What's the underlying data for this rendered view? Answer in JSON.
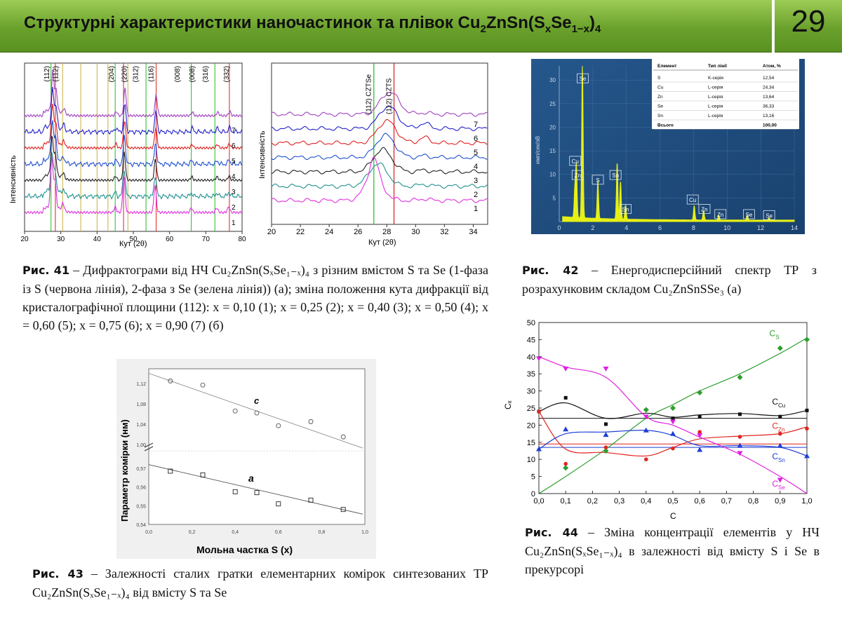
{
  "header": {
    "title_prefix": "Структурні характеристики наночастинок та плівок Cu",
    "slide_number": "29"
  },
  "fig41": {
    "caption_label": "Рис. 41",
    "caption_text": "– Дифрактограми від НЧ Cu₂ZnSn(SₓSe₁₋ₓ)₄ з різним вмістом S та Se (1-фаза із S (червона лінія), 2-фаза з Se (зелена лінія)) (а); зміна положення кута дифракції від кристалографічної площини (112): x = 0,10 (1); x = 0,25 (2); x = 0,40 (3); x = 0,50 (4); x = 0,60 (5); x = 0,75 (6); x = 0,90 (7) (б)",
    "left_ylabel": "Інтенсивність",
    "left_xlabel": "Кут (2θ)",
    "left_xticks": [
      "20",
      "30",
      "40",
      "50",
      "60",
      "70",
      "80"
    ],
    "left_peaks": [
      "(112)",
      "(112)",
      "(204)",
      "(220)",
      "(312)",
      "(116)",
      "(008)",
      "(008)",
      "(316)",
      "(332)"
    ],
    "left_curve_labels": [
      "7",
      "6",
      "5",
      "4",
      "3",
      "2",
      "1"
    ],
    "right_ylabel": "Інтенсивність",
    "right_xlabel": "Кут (2θ)",
    "right_xticks": [
      "20",
      "22",
      "24",
      "26",
      "28",
      "30",
      "32",
      "34"
    ],
    "right_peaks": [
      "(112) CZTSe",
      "(112) CZTS"
    ],
    "right_curve_labels": [
      "7",
      "6",
      "5",
      "4",
      "3",
      "2",
      "1"
    ]
  },
  "fig42": {
    "caption_label": "Рис. 42",
    "caption_text": "– Енергодисперсійний спектр ТР з розрахунковим складом Cu₂ZnSnSSe₃ (а)",
    "ylabel": "имп/сек/эВ",
    "xticks": [
      "0",
      "2",
      "4",
      "6",
      "8",
      "10",
      "12",
      "14"
    ],
    "yticks": [
      "5",
      "10",
      "15",
      "20",
      "25",
      "30"
    ],
    "peak_labels": [
      "Se",
      "Cu",
      "Zn",
      "S",
      "Sn",
      "Sn",
      "Cu",
      "Zn",
      "Zn",
      "Se",
      "Se"
    ],
    "table": {
      "headers": [
        "Елемент",
        "Тип лінії",
        "Атом, %"
      ],
      "rows": [
        [
          "S",
          "K-серія",
          "12,54"
        ],
        [
          "Cu",
          "L-серія",
          "24,34"
        ],
        [
          "Zn",
          "L-серія",
          "13,64"
        ],
        [
          "Se",
          "L-серія",
          "36,33"
        ],
        [
          "Sn",
          "L-серія",
          "13,16"
        ],
        [
          "Всього",
          "",
          "100,00"
        ]
      ]
    }
  },
  "fig43": {
    "caption_label": "Рис. 43",
    "caption_text": "– Залежності сталих гратки елементарних комірок синтезованих ТР Cu₂ZnSn(SₓSe₁₋ₓ)₄ від вмісту S та Se",
    "ylabel": "Параметр комірки (нм)",
    "xlabel": "Мольна частка S (x)",
    "label_c": "c",
    "label_a": "a",
    "xticks": [
      "0,0",
      "0,2",
      "0,4",
      "0,6",
      "0,8",
      "1,0"
    ],
    "yticks_top": [
      "1,12",
      "1,08",
      "1,04",
      "1,00"
    ],
    "yticks_bottom": [
      "0,57",
      "0,56",
      "0,55",
      "0,54"
    ]
  },
  "fig44": {
    "caption_label": "Рис. 44",
    "caption_text": "– Зміна концентрації елементів у НЧ Cu₂ZnSn(SₓSe₁₋ₓ)₄ в залежності від вмісту S і Se в прекурсорі",
    "ylabel": "Cₓ",
    "xlabel": "C",
    "series_labels": [
      "CS",
      "CCu",
      "CZn",
      "CSn",
      "CSe"
    ]
  },
  "chart_data": [
    {
      "type": "scatter",
      "title": "",
      "xlabel": "Мольна частка S (x)",
      "ylabel": "Параметр комірки (нм)",
      "xlim": [
        0.0,
        1.0
      ],
      "series": [
        {
          "name": "c",
          "x": [
            0.1,
            0.25,
            0.4,
            0.5,
            0.6,
            0.75,
            0.9
          ],
          "y": [
            1.125,
            1.117,
            1.066,
            1.062,
            1.037,
            1.045,
            1.015
          ]
        },
        {
          "name": "a",
          "x": [
            0.1,
            0.25,
            0.4,
            0.5,
            0.6,
            0.75,
            0.9
          ],
          "y": [
            0.5685,
            0.5665,
            0.5575,
            0.557,
            0.551,
            0.553,
            0.548
          ]
        }
      ]
    },
    {
      "type": "line",
      "title": "",
      "xlabel": "C",
      "ylabel": "Cₓ",
      "xlim": [
        0.0,
        1.0
      ],
      "ylim": [
        0,
        50
      ],
      "x": [
        0.0,
        0.1,
        0.25,
        0.4,
        0.5,
        0.6,
        0.75,
        0.9,
        1.0
      ],
      "series": [
        {
          "name": "CS",
          "color": "#2e9e2e",
          "values": [
            null,
            7.5,
            12.5,
            24.5,
            25,
            29.5,
            34,
            42.5,
            45
          ]
        },
        {
          "name": "CCu",
          "color": "#111111",
          "values": [
            24,
            28,
            20.3,
            null,
            22,
            22.5,
            23.2,
            22.5,
            24.3
          ]
        },
        {
          "name": "CZn",
          "color": "#e0251f",
          "values": [
            24,
            8.7,
            13.5,
            10,
            13.2,
            18,
            16.6,
            17.5,
            19
          ]
        },
        {
          "name": "CSn",
          "color": "#1f3fd6",
          "values": [
            13,
            18.8,
            17.2,
            18.5,
            17.5,
            12.8,
            14,
            14,
            11
          ]
        },
        {
          "name": "CSe",
          "color": "#e020e0",
          "values": [
            39.5,
            36.5,
            36.5,
            22.5,
            21,
            17,
            11.8,
            4,
            null
          ]
        }
      ]
    }
  ]
}
